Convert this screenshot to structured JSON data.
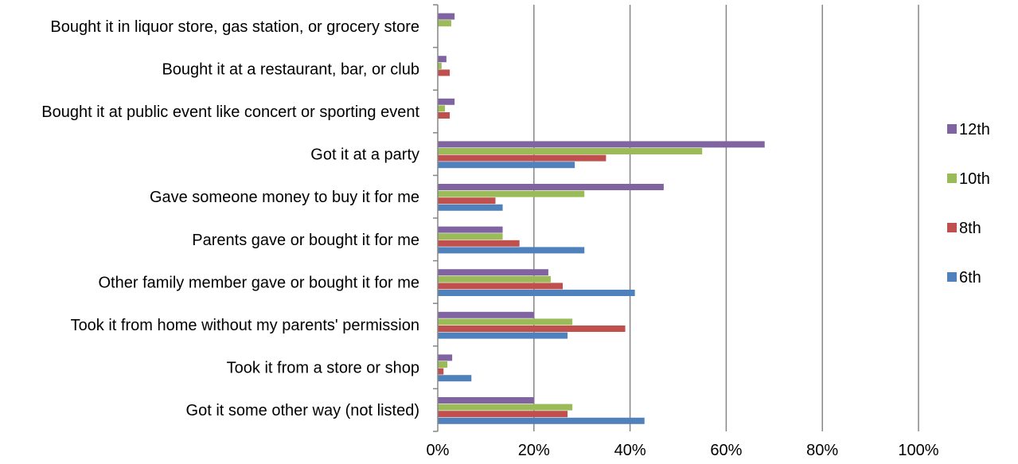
{
  "chart_data": {
    "type": "bar",
    "orientation": "horizontal",
    "title": "",
    "xlabel": "",
    "ylabel": "",
    "xlim": [
      0,
      100
    ],
    "x_ticks": [
      "0%",
      "20%",
      "40%",
      "60%",
      "80%",
      "100%"
    ],
    "grid": true,
    "legend_position": "right",
    "categories": [
      "Bought it in liquor store, gas station, or grocery store",
      "Bought it at a restaurant, bar, or club",
      "Bought it at public event like concert or sporting event",
      "Got it at a party",
      "Gave someone money to buy it for me",
      "Parents gave or bought it for me",
      "Other family member gave or bought it for me",
      "Took it from home without my parents' permission",
      "Took it from a store or shop",
      "Got it some other way (not listed)"
    ],
    "series": [
      {
        "name": "12th",
        "color": "#8064a2",
        "values": [
          3.5,
          1.8,
          3.5,
          68,
          47,
          13.5,
          23,
          20,
          3,
          20
        ]
      },
      {
        "name": "10th",
        "color": "#9bbb59",
        "values": [
          2.8,
          0.8,
          1.5,
          55,
          30.5,
          13.5,
          23.5,
          28,
          2,
          28
        ]
      },
      {
        "name": "8th",
        "color": "#c0504d",
        "values": [
          0,
          2.5,
          2.5,
          35,
          12,
          17,
          26,
          39,
          1.2,
          27
        ]
      },
      {
        "name": "6th",
        "color": "#4f81bd",
        "values": [
          0,
          0,
          0,
          28.5,
          13.5,
          30.5,
          41,
          27,
          7,
          43
        ]
      }
    ]
  }
}
